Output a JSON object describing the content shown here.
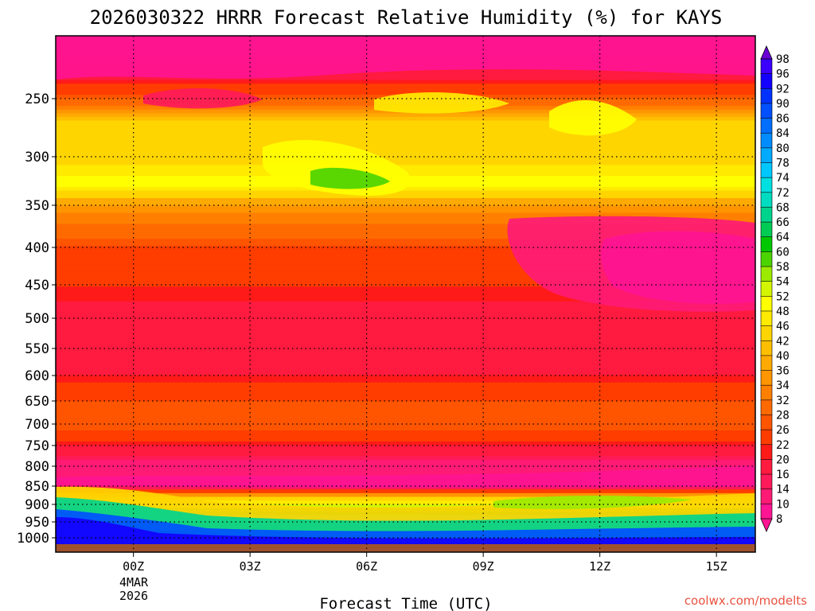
{
  "chart_data": {
    "type": "heatmap",
    "title": "2026030322 HRRR Forecast Relative Humidity (%) for KAYS",
    "xlabel": "Forecast Time (UTC)",
    "ylabel": "",
    "x_ticks": [
      {
        "value": 0,
        "label": "00Z"
      },
      {
        "value": 3,
        "label": "03Z"
      },
      {
        "value": 6,
        "label": "06Z"
      },
      {
        "value": 9,
        "label": "09Z"
      },
      {
        "value": 12,
        "label": "12Z"
      },
      {
        "value": 15,
        "label": "15Z"
      }
    ],
    "x_date_line1": "4MAR",
    "x_date_line2": "2026",
    "xlim": [
      -2,
      16
    ],
    "ylim": [
      1000,
      200
    ],
    "y_ticks": [
      250,
      300,
      350,
      400,
      450,
      500,
      550,
      600,
      650,
      700,
      750,
      800,
      850,
      900,
      950,
      1000
    ],
    "grid": true,
    "colorbar": {
      "levels": [
        8,
        10,
        14,
        16,
        20,
        22,
        26,
        28,
        32,
        34,
        36,
        40,
        42,
        46,
        48,
        52,
        54,
        58,
        60,
        64,
        66,
        68,
        72,
        74,
        78,
        80,
        84,
        86,
        90,
        92,
        96,
        98
      ],
      "colors": [
        "#ff1493",
        "#ff1493",
        "#ff1a75",
        "#ff1a5a",
        "#ff1a3f",
        "#ff1a1a",
        "#ff3d00",
        "#ff5500",
        "#ff6a00",
        "#ff7f00",
        "#ff9500",
        "#ffaa00",
        "#ffbf00",
        "#ffd500",
        "#ffea00",
        "#ffff00",
        "#d4f500",
        "#9cea00",
        "#4cd400",
        "#00c800",
        "#00cc55",
        "#00d48c",
        "#00dcc0",
        "#00e0e0",
        "#00c8ff",
        "#00aaff",
        "#008cff",
        "#006eff",
        "#0050ff",
        "#0032ff",
        "#1400ff",
        "#3c00ff",
        "#6a00d6"
      ],
      "position": "right"
    },
    "rh_profiles": [
      {
        "p": 200,
        "rh": 10
      },
      {
        "p": 230,
        "rh": 18
      },
      {
        "p": 250,
        "rh": 28
      },
      {
        "p": 270,
        "rh": 42
      },
      {
        "p": 300,
        "rh": 44
      },
      {
        "p": 330,
        "rh": 50
      },
      {
        "p": 350,
        "rh": 36
      },
      {
        "p": 400,
        "rh": 26
      },
      {
        "p": 450,
        "rh": 22
      },
      {
        "p": 500,
        "rh": 18
      },
      {
        "p": 550,
        "rh": 16
      },
      {
        "p": 600,
        "rh": 20
      },
      {
        "p": 650,
        "rh": 26
      },
      {
        "p": 700,
        "rh": 28
      },
      {
        "p": 750,
        "rh": 20
      },
      {
        "p": 800,
        "rh": 12
      },
      {
        "p": 850,
        "rh": 12
      },
      {
        "p": 880,
        "rh": 40
      },
      {
        "p": 910,
        "rh": 56
      },
      {
        "p": 940,
        "rh": 72
      },
      {
        "p": 970,
        "rh": 90
      },
      {
        "p": 1000,
        "rh": 96
      }
    ]
  },
  "credit": "coolwx.com/modelts",
  "colors": {
    "ground": "#a0522d",
    "credit": "#e8523f"
  }
}
